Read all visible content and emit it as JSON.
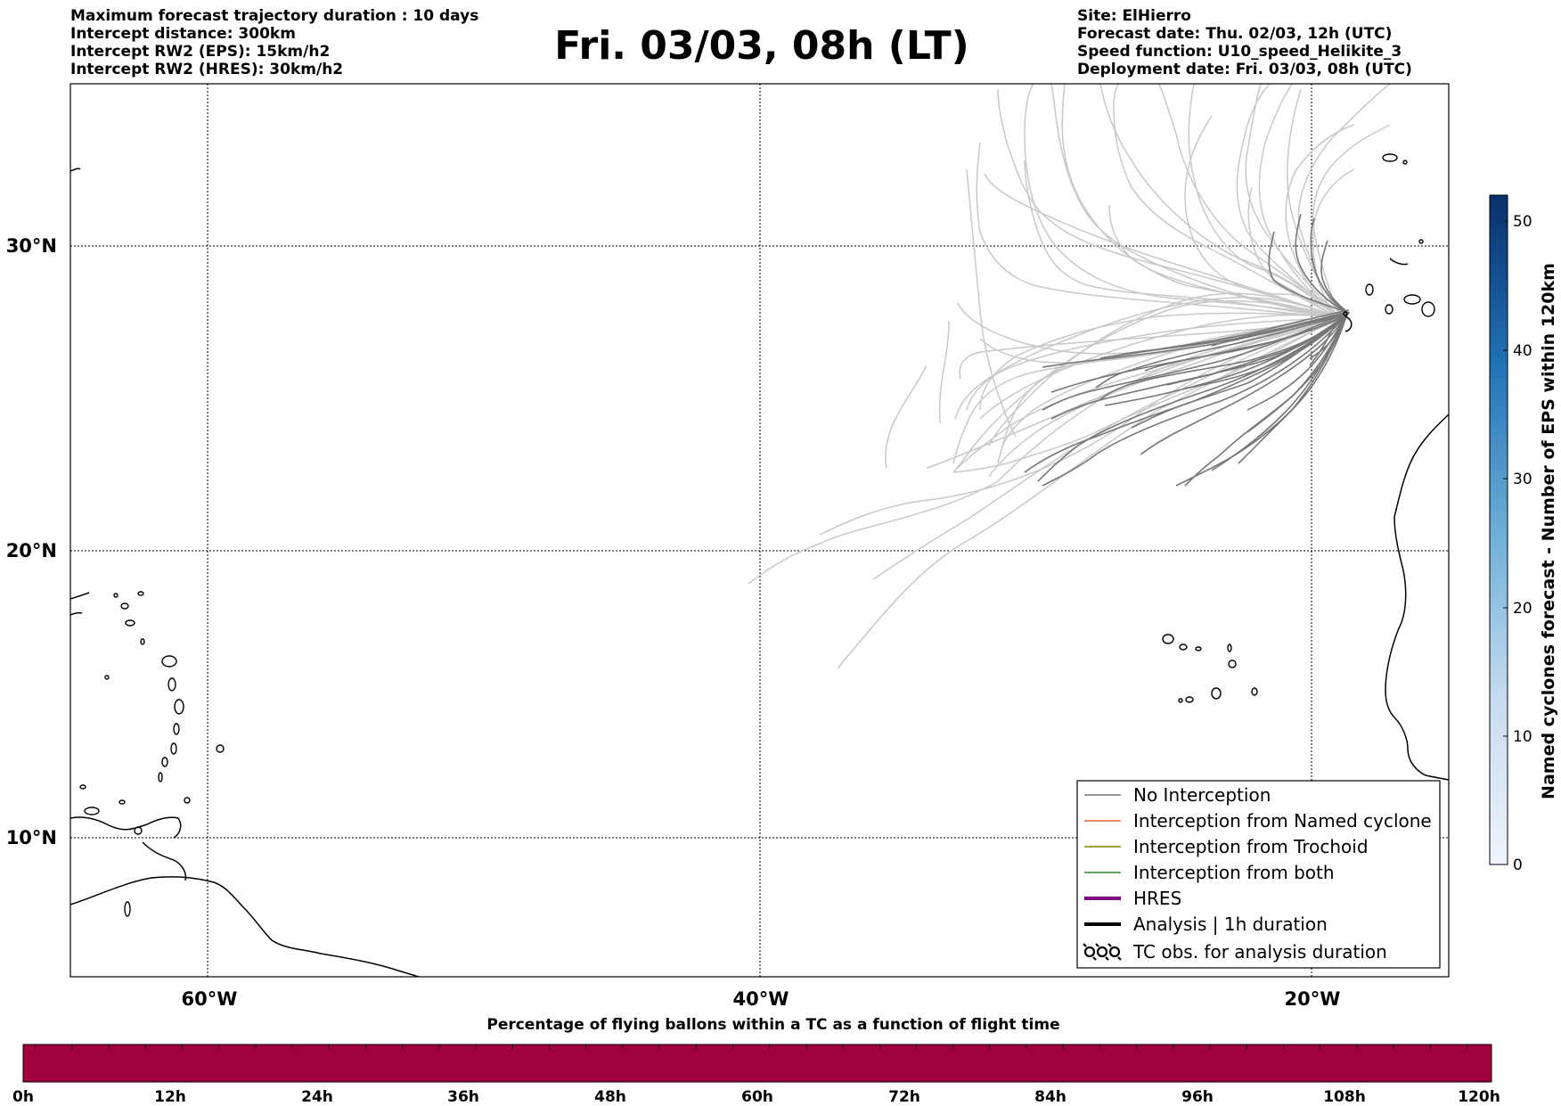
{
  "header_left": [
    "Maximum forecast trajectory duration : 10 days",
    "Intercept distance: 300km",
    "Intercept RW2 (EPS):  15km/h2",
    "Intercept RW2 (HRES): 30km/h2"
  ],
  "title": "Fri. 03/03, 08h (LT)",
  "header_right": [
    "Site: ElHierro",
    "Forecast date: Thu. 02/03, 12h (UTC)",
    "Speed function: U10_speed_Helikite_3",
    "Deployment date: Fri. 03/03, 08h (UTC)"
  ],
  "map": {
    "lat_labels": [
      "30°N",
      "20°N",
      "10°N"
    ],
    "lon_labels": [
      "60°W",
      "40°W",
      "20°W"
    ]
  },
  "colorbar": {
    "label": "Named cyclones forecast - Number of EPS within 120km",
    "ticks": [
      "0",
      "10",
      "20",
      "30",
      "40",
      "50"
    ],
    "color_min": "#e3eef9",
    "color_max": "#08306b"
  },
  "legend": [
    {
      "label": "No Interception",
      "color": "#777777",
      "style": "thin"
    },
    {
      "label": "Interception from Named cyclone",
      "color": "#e8602c",
      "style": "thin"
    },
    {
      "label": "Interception from Trochoid",
      "color": "#808000",
      "style": "thin"
    },
    {
      "label": "Interception from both",
      "color": "#2e8b2e",
      "style": "thin"
    },
    {
      "label": "HRES",
      "color": "#800080",
      "style": "thick"
    },
    {
      "label": "Analysis | 1h duration",
      "color": "#000000",
      "style": "thick"
    },
    {
      "label": "TC obs. for analysis duration",
      "color": "#000000",
      "style": "symbols"
    }
  ],
  "trajectory_colors": {
    "no_interception": "#777777",
    "other_members": "#c8c8c8"
  },
  "bottom_bar": {
    "label": "Percentage of flying ballons within a TC as a function of flight time",
    "ticks": [
      "0h",
      "12h",
      "24h",
      "36h",
      "48h",
      "60h",
      "72h",
      "84h",
      "96h",
      "108h",
      "120h"
    ],
    "fill_color": "#a0003c"
  }
}
